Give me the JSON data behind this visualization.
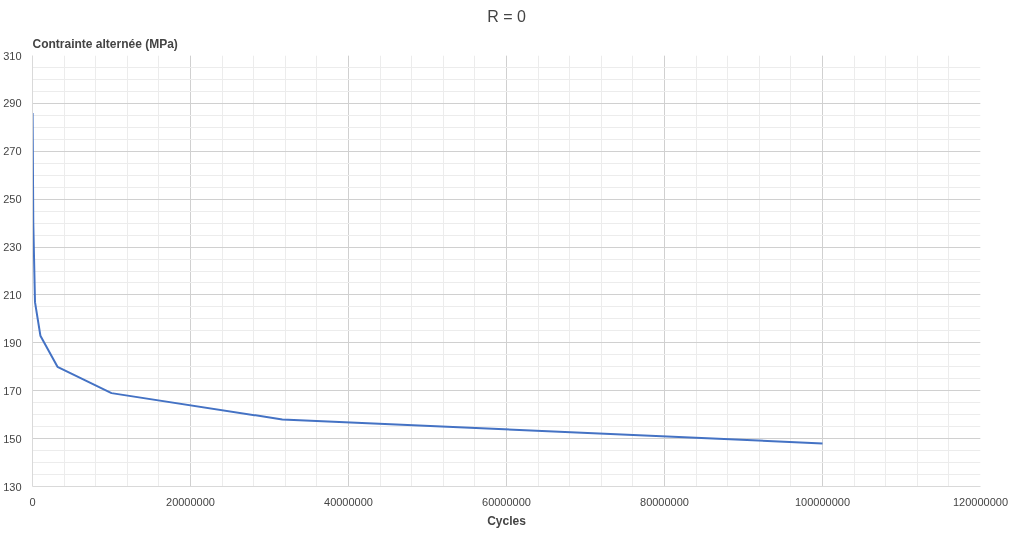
{
  "chart_data": {
    "type": "line",
    "title": "R = 0",
    "xlabel": "Cycles",
    "ylabel": "Contrainte alternée (MPa)",
    "x": [
      10000,
      100000,
      316228,
      1000000,
      3162278,
      10000000,
      31622777,
      100000000
    ],
    "series": [
      {
        "color": "#4472c4",
        "values": [
          286,
          240,
          207,
          193,
          180,
          169,
          158,
          148
        ]
      }
    ],
    "xlim": [
      0,
      120000000
    ],
    "xticks": [
      0,
      20000000,
      40000000,
      60000000,
      80000000,
      100000000,
      120000000
    ],
    "ylim": [
      130,
      310
    ],
    "yticks": [
      130,
      150,
      170,
      190,
      210,
      230,
      250,
      270,
      290,
      310
    ],
    "grid": true,
    "marker": "none",
    "line_style": "solid"
  }
}
